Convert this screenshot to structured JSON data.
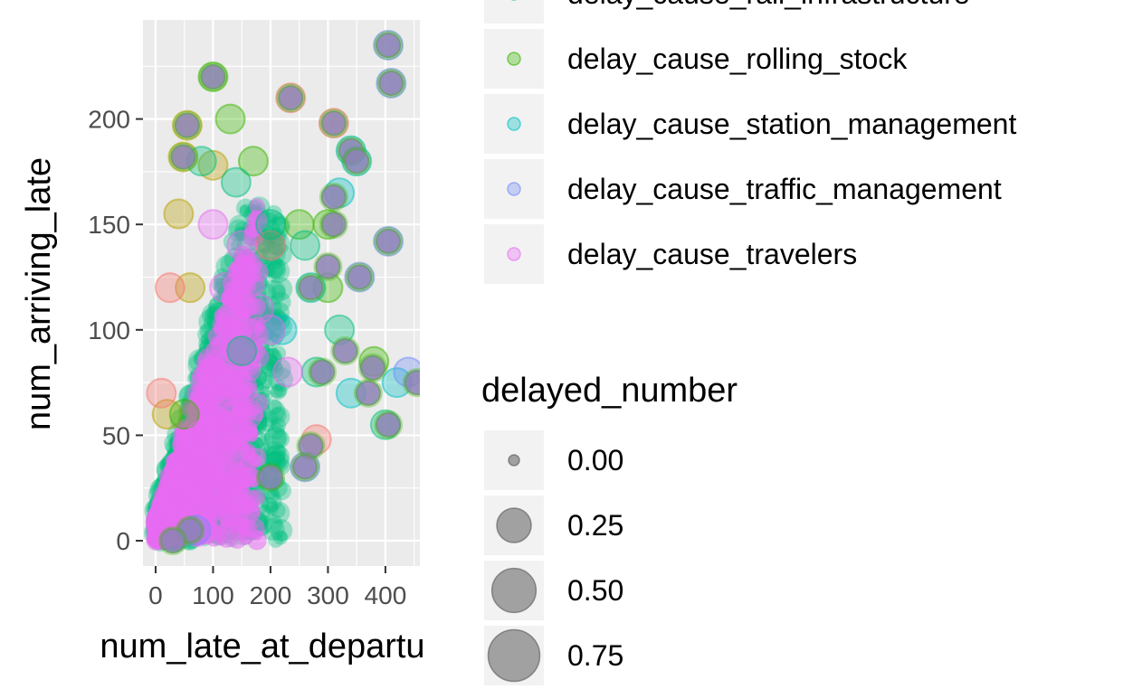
{
  "chart_data": {
    "type": "scatter",
    "xlabel": "num_late_at_departu",
    "ylabel": "num_arriving_late",
    "xlim": [
      -22,
      460
    ],
    "ylim": [
      -12,
      247
    ],
    "x_ticks": [
      0,
      100,
      200,
      300,
      400
    ],
    "x_tick_labels": [
      "0",
      "100",
      "200",
      "300",
      "400"
    ],
    "y_ticks": [
      0,
      50,
      100,
      150,
      200
    ],
    "y_tick_labels": [
      "0",
      "50",
      "100",
      "150",
      "200"
    ],
    "grid": true,
    "legend_placement": "right",
    "color_legend": {
      "entries": [
        {
          "name": "delay_cause_rail_infrastructure",
          "color": "#00BF7D"
        },
        {
          "name": "delay_cause_rolling_stock",
          "color": "#39B600"
        },
        {
          "name": "delay_cause_station_management",
          "color": "#00BFC4"
        },
        {
          "name": "delay_cause_traffic_management",
          "color": "#6F8BF7"
        },
        {
          "name": "delay_cause_travelers",
          "color": "#E76BF3"
        }
      ]
    },
    "size_legend": {
      "title": "delayed_number",
      "values": [
        0.0,
        0.25,
        0.5,
        0.75
      ],
      "labels": [
        "0.00",
        "0.25",
        "0.50",
        "0.75"
      ]
    },
    "series": [
      {
        "color": "#B79F00",
        "points": [
          [
            55,
            197
          ],
          [
            48,
            182
          ],
          [
            40,
            155
          ],
          [
            100,
            178
          ],
          [
            60,
            120
          ],
          [
            20,
            60
          ]
        ]
      },
      {
        "color": "#F8766D",
        "points": [
          [
            310,
            198
          ],
          [
            235,
            210
          ],
          [
            25,
            120
          ],
          [
            280,
            48
          ],
          [
            200,
            140
          ],
          [
            10,
            70
          ]
        ]
      },
      {
        "color": "#39B600",
        "points": [
          [
            100,
            220
          ],
          [
            130,
            200
          ],
          [
            170,
            180
          ],
          [
            250,
            150
          ],
          [
            300,
            150
          ],
          [
            380,
            85
          ],
          [
            300,
            120
          ],
          [
            50,
            60
          ]
        ]
      },
      {
        "color": "#00BF7D",
        "points": [
          [
            80,
            180
          ],
          [
            140,
            170
          ],
          [
            200,
            150
          ],
          [
            260,
            140
          ],
          [
            320,
            100
          ],
          [
            280,
            80
          ],
          [
            400,
            55
          ],
          [
            150,
            90
          ]
        ]
      },
      {
        "color": "#00BFC4",
        "points": [
          [
            340,
            185
          ],
          [
            350,
            180
          ],
          [
            320,
            165
          ],
          [
            270,
            120
          ],
          [
            220,
            100
          ],
          [
            340,
            70
          ],
          [
            420,
            75
          ]
        ]
      },
      {
        "color": "#6F8BF7",
        "points": [
          [
            405,
            235
          ],
          [
            410,
            217
          ],
          [
            405,
            142
          ],
          [
            355,
            125
          ],
          [
            260,
            35
          ],
          [
            70,
            5
          ],
          [
            440,
            80
          ]
        ]
      },
      {
        "color": "#E76BF3",
        "points": [
          [
            100,
            150
          ],
          [
            150,
            140
          ],
          [
            120,
            120
          ],
          [
            180,
            110
          ],
          [
            200,
            100
          ],
          [
            230,
            80
          ],
          [
            160,
            60
          ],
          [
            80,
            50
          ],
          [
            40,
            20
          ],
          [
            10,
            10
          ]
        ]
      }
    ],
    "overlay_series": {
      "color": "#E76BF3",
      "region": "triangle",
      "x_range": [
        0,
        220
      ],
      "y_range": [
        0,
        160
      ]
    },
    "composite_color": "#8C83B4",
    "composite_points": [
      [
        405,
        235
      ],
      [
        410,
        217
      ],
      [
        405,
        142
      ],
      [
        455,
        75
      ],
      [
        405,
        55
      ],
      [
        378,
        82
      ],
      [
        370,
        70
      ],
      [
        340,
        185
      ],
      [
        350,
        180
      ],
      [
        100,
        220
      ],
      [
        235,
        210
      ],
      [
        310,
        198
      ],
      [
        55,
        197
      ],
      [
        48,
        182
      ],
      [
        310,
        163
      ],
      [
        270,
        120
      ],
      [
        300,
        130
      ],
      [
        355,
        125
      ],
      [
        330,
        90
      ],
      [
        310,
        150
      ],
      [
        290,
        80
      ],
      [
        270,
        45
      ],
      [
        260,
        35
      ],
      [
        200,
        30
      ],
      [
        60,
        5
      ],
      [
        30,
        0
      ]
    ]
  }
}
